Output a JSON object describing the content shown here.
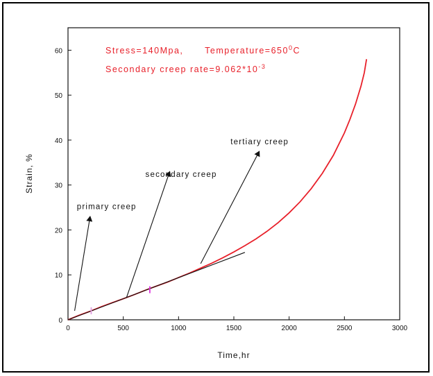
{
  "chart_data": {
    "type": "line",
    "xlabel": "Time,hr",
    "ylabel": "Strain, %",
    "xlim": [
      0,
      3000
    ],
    "ylim": [
      0,
      65
    ],
    "x_ticks": [
      0,
      500,
      1000,
      1500,
      2000,
      2500,
      3000
    ],
    "y_ticks": [
      0,
      10,
      20,
      30,
      40,
      50,
      60
    ],
    "grid": false,
    "legend": "none",
    "series": [
      {
        "color": "#e8202a",
        "x": [
          0,
          100,
          200,
          300,
          400,
          500,
          600,
          700,
          800,
          900,
          1000,
          1100,
          1200,
          1300,
          1400,
          1500,
          1600,
          1700,
          1800,
          1900,
          2000,
          2100,
          2200,
          2300,
          2400,
          2500,
          2550,
          2600,
          2650,
          2680,
          2700
        ],
        "y": [
          0,
          1.0,
          1.9,
          2.9,
          3.8,
          4.7,
          5.6,
          6.6,
          7.5,
          8.4,
          9.4,
          10.4,
          11.5,
          12.6,
          13.8,
          15.1,
          16.5,
          18.0,
          19.7,
          21.6,
          23.8,
          26.3,
          29.2,
          32.6,
          36.6,
          41.6,
          44.6,
          48.0,
          52.0,
          55.0,
          58.0
        ]
      },
      {
        "color": "#111111",
        "x": [
          0,
          1600
        ],
        "y": [
          0,
          15.0
        ]
      }
    ],
    "markers": [
      {
        "x": 210,
        "y": 2.0,
        "color": "#e0a0e0"
      },
      {
        "x": 740,
        "y": 6.7,
        "color": "#dd33dd"
      }
    ],
    "annotations": [
      {
        "text": "primary creep",
        "label_x": 80,
        "label_y": 24.6,
        "arrow_from": [
          60,
          2.0
        ],
        "arrow_to": [
          200,
          23.0
        ]
      },
      {
        "text": "secondary creep",
        "label_x": 700,
        "label_y": 31.8,
        "arrow_from": [
          530,
          5.0
        ],
        "arrow_to": [
          920,
          33.0
        ]
      },
      {
        "text": "tertiary creep",
        "label_x": 1470,
        "label_y": 39.1,
        "arrow_from": [
          1200,
          12.5
        ],
        "arrow_to": [
          1730,
          37.5
        ]
      }
    ],
    "red_notes": {
      "line1_a": "Stress=140Mpa,",
      "line1_b": "Temperature=650",
      "line1_sup": "0",
      "line1_unit": "C",
      "line2": "Secondary creep rate=9.062*10",
      "line2_sup": "-3"
    }
  }
}
